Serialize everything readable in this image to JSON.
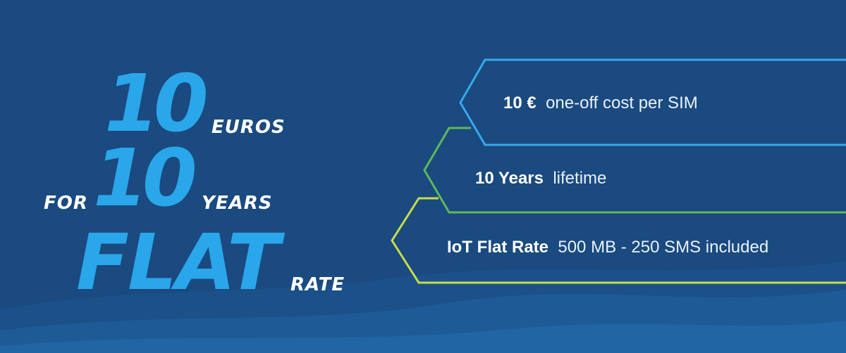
{
  "hero": {
    "amount": "10",
    "amount_unit": "EUROS",
    "for_label": "FOR",
    "duration": "10",
    "duration_unit": "YEARS",
    "flat_word": "FLAT",
    "rate_word": "RATE"
  },
  "features": [
    {
      "bold": "10 €",
      "text": "one-off cost per SIM",
      "accent": "#36a9ec"
    },
    {
      "bold": "10 Years",
      "text": "lifetime",
      "accent": "#5fb85a"
    },
    {
      "bold": "IoT Flat Rate",
      "text": "500 MB - 250 SMS included",
      "accent": "#c9dc4a"
    }
  ],
  "colors": {
    "background": "#1a4a7f",
    "hero_blue": "#2aa6ea",
    "white": "#ffffff"
  }
}
